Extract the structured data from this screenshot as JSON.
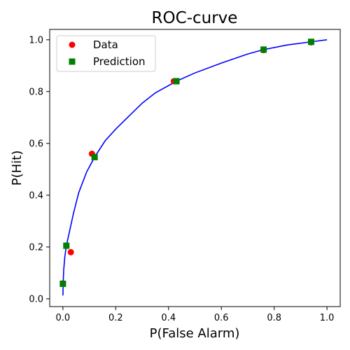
{
  "chart_data": {
    "type": "scatter",
    "title": "ROC-curve",
    "xlabel": "P(False Alarm)",
    "ylabel": "P(Hit)",
    "xlim": [
      -0.05,
      1.05
    ],
    "ylim": [
      -0.03,
      1.04
    ],
    "xticks": [
      0.0,
      0.2,
      0.4,
      0.6,
      0.8,
      1.0
    ],
    "xtick_labels": [
      "0.0",
      "0.2",
      "0.4",
      "0.6",
      "0.8",
      "1.0"
    ],
    "yticks": [
      0.0,
      0.2,
      0.4,
      0.6,
      0.8,
      1.0
    ],
    "ytick_labels": [
      "0.0",
      "0.2",
      "0.4",
      "0.6",
      "0.8",
      "1.0"
    ],
    "grid": false,
    "legend_position": "top-left",
    "series": [
      {
        "name": "Data",
        "marker": "circle",
        "color": "#ff0000",
        "points": [
          {
            "x": 0.0,
            "y": 0.06
          },
          {
            "x": 0.03,
            "y": 0.18
          },
          {
            "x": 0.11,
            "y": 0.56
          },
          {
            "x": 0.42,
            "y": 0.84
          },
          {
            "x": 0.76,
            "y": 0.96
          },
          {
            "x": 0.94,
            "y": 0.99
          }
        ]
      },
      {
        "name": "Prediction",
        "marker": "square",
        "color": "#008000",
        "points": [
          {
            "x": 0.0,
            "y": 0.058
          },
          {
            "x": 0.013,
            "y": 0.205
          },
          {
            "x": 0.12,
            "y": 0.547
          },
          {
            "x": 0.43,
            "y": 0.84
          },
          {
            "x": 0.76,
            "y": 0.962
          },
          {
            "x": 0.94,
            "y": 0.992
          }
        ]
      }
    ],
    "curve": {
      "color": "#0000ff",
      "points": [
        {
          "x": 0.0,
          "y": 0.013
        },
        {
          "x": 0.001,
          "y": 0.06
        },
        {
          "x": 0.003,
          "y": 0.11
        },
        {
          "x": 0.007,
          "y": 0.16
        },
        {
          "x": 0.013,
          "y": 0.205
        },
        {
          "x": 0.025,
          "y": 0.26
        },
        {
          "x": 0.04,
          "y": 0.33
        },
        {
          "x": 0.06,
          "y": 0.41
        },
        {
          "x": 0.09,
          "y": 0.49
        },
        {
          "x": 0.12,
          "y": 0.547
        },
        {
          "x": 0.16,
          "y": 0.61
        },
        {
          "x": 0.2,
          "y": 0.655
        },
        {
          "x": 0.25,
          "y": 0.705
        },
        {
          "x": 0.3,
          "y": 0.755
        },
        {
          "x": 0.35,
          "y": 0.795
        },
        {
          "x": 0.43,
          "y": 0.84
        },
        {
          "x": 0.5,
          "y": 0.872
        },
        {
          "x": 0.6,
          "y": 0.91
        },
        {
          "x": 0.7,
          "y": 0.945
        },
        {
          "x": 0.76,
          "y": 0.962
        },
        {
          "x": 0.85,
          "y": 0.98
        },
        {
          "x": 0.94,
          "y": 0.992
        },
        {
          "x": 1.0,
          "y": 1.0
        }
      ]
    }
  }
}
